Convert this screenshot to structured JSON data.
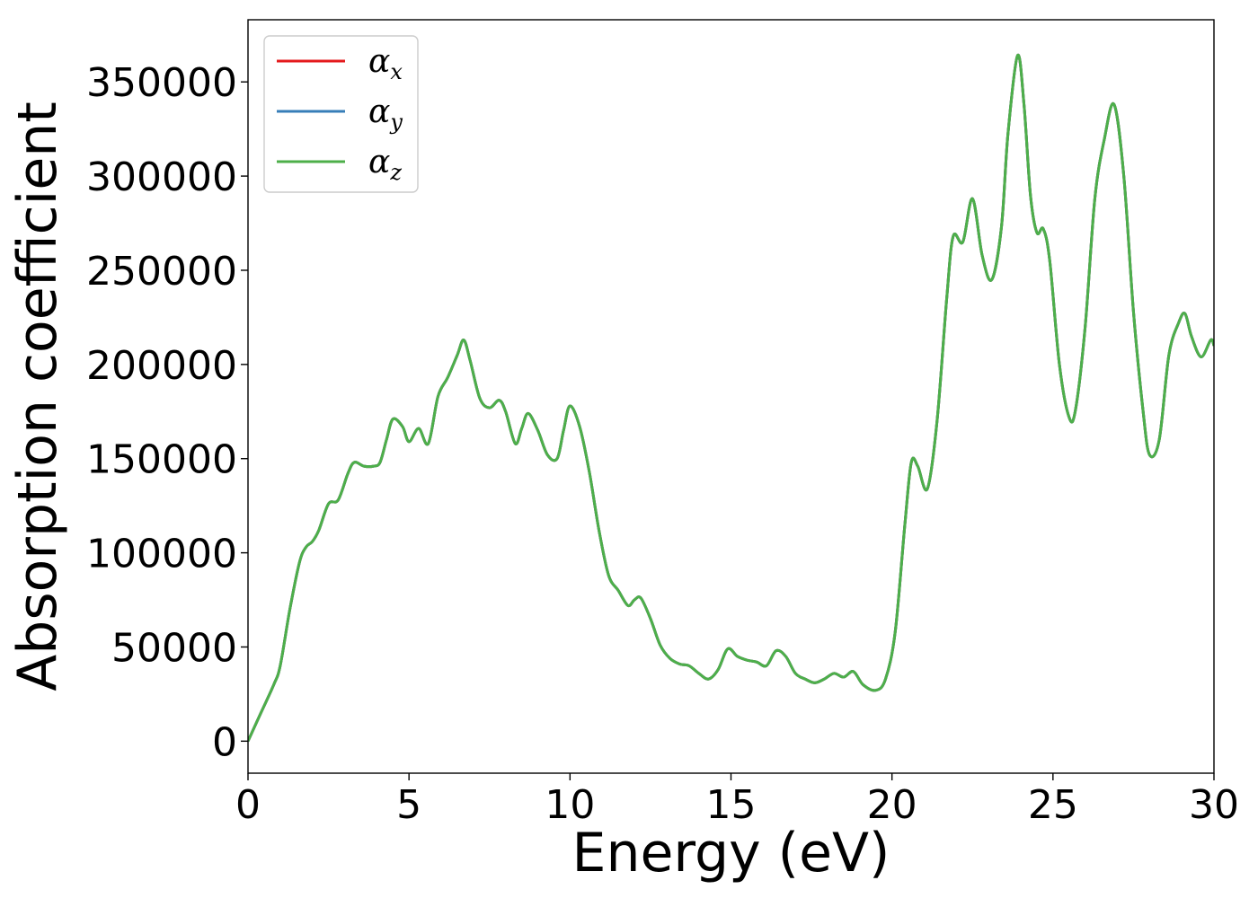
{
  "chart_data": {
    "type": "line",
    "xlabel": "Energy (eV)",
    "ylabel": "Absorption coefficient",
    "xlim": [
      0,
      30
    ],
    "ylim": [
      -17000,
      383000
    ],
    "xticks": [
      0,
      5,
      10,
      15,
      20,
      25,
      30
    ],
    "yticks": [
      0,
      50000,
      100000,
      150000,
      200000,
      250000,
      300000,
      350000
    ],
    "grid": false,
    "legend_position": "top-left",
    "series": [
      {
        "name": "α",
        "subscript": "x",
        "color": "#e41a1c"
      },
      {
        "name": "α",
        "subscript": "y",
        "color": "#377eb8"
      },
      {
        "name": "α",
        "subscript": "z",
        "color": "#4daf4a"
      }
    ],
    "x": [
      0,
      0.4,
      0.8,
      1.0,
      1.3,
      1.6,
      1.8,
      2.0,
      2.2,
      2.5,
      2.8,
      3.1,
      3.3,
      3.6,
      3.9,
      4.1,
      4.3,
      4.5,
      4.8,
      5.0,
      5.3,
      5.6,
      5.9,
      6.2,
      6.5,
      6.7,
      6.9,
      7.2,
      7.5,
      7.8,
      8.0,
      8.3,
      8.5,
      8.7,
      9.0,
      9.3,
      9.6,
      9.8,
      10.0,
      10.3,
      10.6,
      10.9,
      11.2,
      11.5,
      11.8,
      12.0,
      12.2,
      12.5,
      12.8,
      13.1,
      13.4,
      13.7,
      14.0,
      14.3,
      14.6,
      14.9,
      15.2,
      15.5,
      15.8,
      16.1,
      16.4,
      16.7,
      17.0,
      17.3,
      17.6,
      17.9,
      18.2,
      18.5,
      18.8,
      19.1,
      19.5,
      19.8,
      20.1,
      20.4,
      20.6,
      20.8,
      21.1,
      21.4,
      21.7,
      21.9,
      22.2,
      22.5,
      22.8,
      23.1,
      23.4,
      23.6,
      23.9,
      24.1,
      24.3,
      24.5,
      24.7,
      24.9,
      25.2,
      25.5,
      25.7,
      26.0,
      26.3,
      26.6,
      26.9,
      27.2,
      27.5,
      27.8,
      28.0,
      28.3,
      28.6,
      28.9,
      29.1,
      29.3,
      29.6,
      29.9,
      30.0
    ],
    "values": [
      0,
      15000,
      30000,
      40000,
      70000,
      95000,
      103000,
      106000,
      112000,
      126000,
      128000,
      142000,
      148000,
      146000,
      146000,
      148000,
      160000,
      171000,
      167000,
      159000,
      166000,
      158000,
      183000,
      193000,
      205000,
      213000,
      202000,
      182000,
      177000,
      181000,
      175000,
      158000,
      166000,
      174000,
      165000,
      152000,
      150000,
      165000,
      178000,
      167000,
      143000,
      112000,
      88000,
      80000,
      72000,
      75000,
      76000,
      65000,
      51000,
      44000,
      41000,
      40000,
      36000,
      33000,
      38000,
      49000,
      45000,
      43000,
      42000,
      40000,
      48000,
      45000,
      36000,
      33000,
      31000,
      33000,
      36000,
      34000,
      37000,
      30000,
      27000,
      33000,
      58000,
      115000,
      148000,
      146000,
      134000,
      170000,
      235000,
      268000,
      265000,
      288000,
      258000,
      245000,
      273000,
      322000,
      364000,
      338000,
      290000,
      270000,
      272000,
      255000,
      200000,
      172000,
      176000,
      220000,
      288000,
      320000,
      338000,
      300000,
      228000,
      175000,
      152000,
      160000,
      205000,
      222000,
      227000,
      215000,
      204000,
      213000,
      210000
    ]
  }
}
